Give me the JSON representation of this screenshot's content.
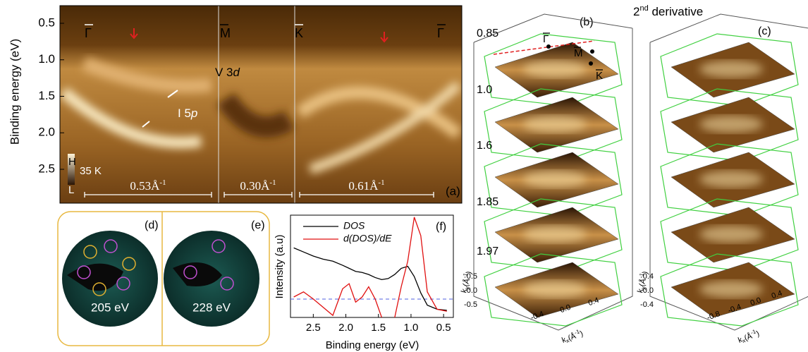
{
  "panels": {
    "a": {
      "ylabel": "Binding energy (eV)",
      "yticks": [
        "0.5",
        "1.0",
        "1.5",
        "2.0",
        "2.5"
      ],
      "points": [
        "Γ",
        "M",
        "K",
        "Γ"
      ],
      "band_v": {
        "text": "V 3",
        "italic": "d"
      },
      "band_i": {
        "text": "I 5",
        "italic": "p"
      },
      "scale_high": "H",
      "scale_temp": "35 K",
      "scale_low": "L",
      "lengths": [
        {
          "text": "0.53Å",
          "sup": "-1"
        },
        {
          "text": "0.30Å",
          "sup": "-1"
        },
        {
          "text": "0.61Å",
          "sup": "-1"
        }
      ],
      "tag": "(a)"
    },
    "b": {
      "tag": "(b)",
      "energies": [
        "0.85",
        "1.0",
        "1.6",
        "1.85",
        "1.97"
      ],
      "points": [
        "Γ",
        "M",
        "K"
      ],
      "ky_label": {
        "text": "k",
        "sub": "y",
        "unit": "(Å",
        "sup": "-1",
        "close": ")"
      },
      "kx_label": {
        "text": "k",
        "sub": "x",
        "unit": "(Å",
        "sup": "-1",
        "close": ")"
      },
      "ky_ticks": [
        "0.5",
        "0.0",
        "-0.5"
      ],
      "kx_ticks": [
        "-0.4",
        "0.0",
        "0.4"
      ]
    },
    "c": {
      "tag": "(c)",
      "title": {
        "base": "2",
        "sup": "nd",
        "rest": " derivative"
      },
      "ky_label": {
        "text": "k",
        "sub": "y",
        "unit": "(Å",
        "sup": "-1",
        "close": ")"
      },
      "kx_label": {
        "text": "k",
        "sub": "x",
        "unit": "(Å",
        "sup": "-1",
        "close": ")"
      },
      "ky_ticks": [
        "0.4",
        "0.0",
        "-0.4"
      ],
      "kx_ticks": [
        "-0.8",
        "-0.4",
        "0.0",
        "0.4"
      ]
    },
    "d": {
      "tag": "(d)",
      "energy": "205 eV"
    },
    "e": {
      "tag": "(e)",
      "energy": "228 eV"
    },
    "f": {
      "type": "line",
      "tag": "(f)",
      "ylabel": "Intensity (a.u)",
      "xlabel": "Binding energy (eV)",
      "x": [
        2.8,
        2.65,
        2.5,
        2.35,
        2.2,
        2.05,
        1.95,
        1.85,
        1.75,
        1.65,
        1.55,
        1.45,
        1.35,
        1.25,
        1.15,
        1.05,
        0.95,
        0.85,
        0.75,
        0.6,
        0.45
      ],
      "series": [
        {
          "name": "DOS",
          "color": "#000000",
          "values": [
            0.68,
            0.64,
            0.6,
            0.57,
            0.55,
            0.51,
            0.48,
            0.45,
            0.44,
            0.42,
            0.39,
            0.37,
            0.38,
            0.42,
            0.48,
            0.5,
            0.4,
            0.24,
            0.12,
            0.08,
            0.07
          ]
        },
        {
          "name": "d(DOS)/dE",
          "color": "#e01010",
          "values": [
            0.2,
            0.25,
            0.18,
            0.1,
            0.02,
            0.28,
            0.33,
            0.15,
            0.2,
            0.3,
            0.18,
            0.0,
            null,
            0.0,
            0.3,
            0.55,
            0.98,
            0.8,
            0.25,
            0.08,
            0.06
          ]
        }
      ],
      "xlim": [
        2.85,
        0.35
      ],
      "ylim": [
        0,
        1
      ],
      "xticks": [
        2.5,
        {
          "value": 2,
          "label": "2.0"
        },
        1.5,
        {
          "value": 1,
          "label": "1.0"
        },
        0.5
      ]
    }
  }
}
